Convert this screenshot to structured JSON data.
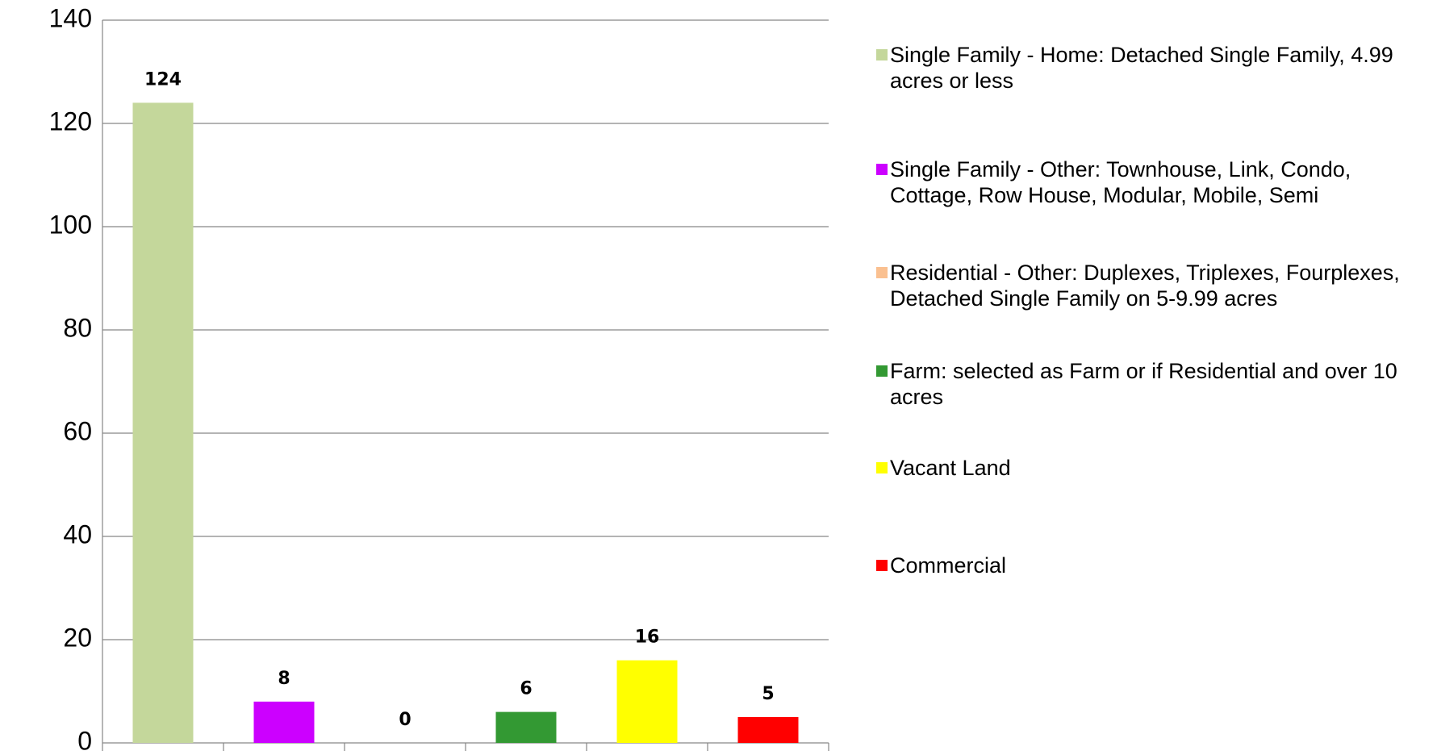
{
  "chart_data": {
    "type": "bar",
    "categories": [
      "Single Family - Home: Detached Single Family, 4.99 acres or less",
      "Single Family - Other: Townhouse, Link, Condo, Cottage, Row House, Modular, Mobile, Semi",
      "Residential - Other: Duplexes, Triplexes, Fourplexes, Detached Single Family on 5-9.99 acres",
      "Farm: selected as Farm or if Residential and over 10 acres",
      "Vacant Land",
      "Commercial"
    ],
    "values": [
      124,
      8,
      0,
      6,
      16,
      5
    ],
    "colors": [
      "#c4d79b",
      "#cc00ff",
      "#fac090",
      "#339933",
      "#ffff00",
      "#ff0000"
    ],
    "ylim": [
      0,
      140
    ],
    "yticks": [
      0,
      20,
      40,
      60,
      80,
      100,
      120,
      140
    ],
    "grid": true,
    "legend": "right"
  }
}
